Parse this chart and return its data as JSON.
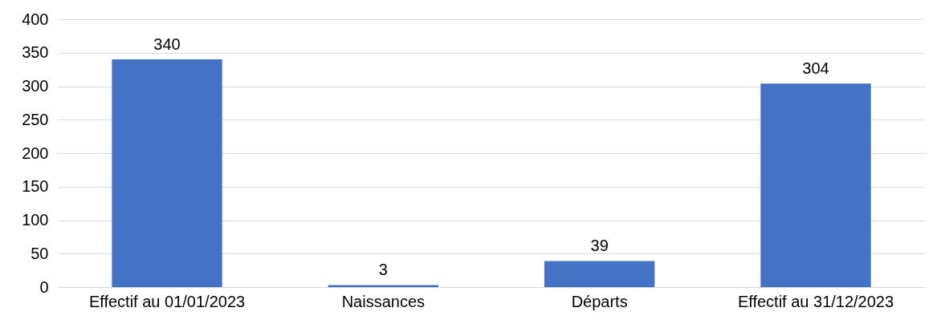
{
  "chart_data": {
    "type": "bar",
    "categories": [
      "Effectif au 01/01/2023",
      "Naissances",
      "Départs",
      "Effectif au 31/12/2023"
    ],
    "values": [
      340,
      3,
      39,
      304
    ],
    "color": "#4472c4",
    "ylim": [
      0,
      400
    ],
    "yticks": [
      0,
      50,
      100,
      150,
      200,
      250,
      300,
      350,
      400
    ],
    "grid": "y",
    "data_labels": true
  }
}
